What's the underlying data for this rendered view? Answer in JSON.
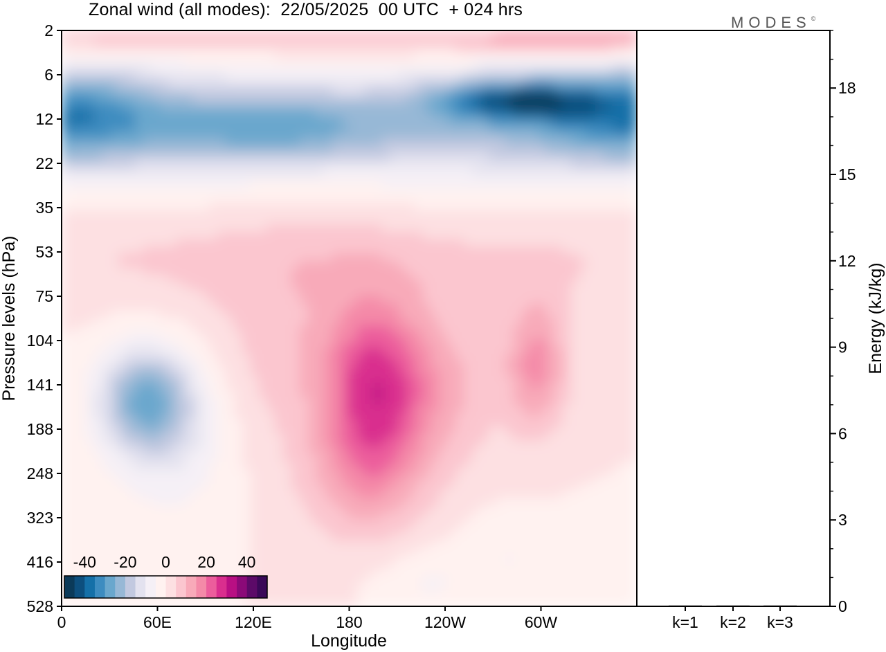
{
  "title": "Zonal wind (all modes):  22/05/2025  00 UTC  + 024 hrs",
  "brand": "MODES",
  "brand_mark": "©",
  "chart_data": [
    {
      "type": "heatmap",
      "title": "Zonal wind (all modes):  22/05/2025  00 UTC  + 024 hrs",
      "xlabel": "Longitude",
      "ylabel": "Pressure levels (hPa)",
      "x_ticks": [
        "0",
        "60E",
        "120E",
        "180",
        "120W",
        "60W"
      ],
      "x_range_deg": [
        0,
        360
      ],
      "y_ticks": [
        "2",
        "6",
        "12",
        "22",
        "35",
        "53",
        "75",
        "104",
        "141",
        "188",
        "248",
        "323",
        "416",
        "528"
      ],
      "y_scale": "model levels (non-linear pressure)",
      "colorbar": {
        "tick_labels": [
          "-40",
          "-20",
          "0",
          "20",
          "40"
        ],
        "range": [
          -50,
          50
        ],
        "step": 5,
        "colors": [
          "#0b3a59",
          "#0d4f7e",
          "#1570a8",
          "#3d8cc0",
          "#6aa7cd",
          "#97b8d6",
          "#c2c9e0",
          "#e3e2ef",
          "#f5f0f6",
          "#fff2f0",
          "#fde0e2",
          "#fbc6cf",
          "#f8aab9",
          "#f48aa8",
          "#ec5d9c",
          "#d92e8e",
          "#b80f83",
          "#8b0a78",
          "#5c0a68",
          "#3a0858"
        ]
      },
      "fields": {
        "upper_easterly_band": "strong negative winds (-20 to -50) between 6 and 22 hPa, strongest near 60W-30W",
        "top_level": "weak positive (0 to 15) near 2-4 hPa",
        "stratosphere_below": "weak positive 0 to 10 at 35-75 hPa"
      }
    },
    {
      "type": "bar",
      "categories": [
        "k=1",
        "k=2",
        "k=3"
      ],
      "values": [
        0.02,
        0.01,
        0.01
      ],
      "ylabel": "Energy (kJ/kg)",
      "ylim": [
        0,
        20
      ],
      "y_ticks": [
        0,
        3,
        6,
        9,
        12,
        15,
        18
      ]
    }
  ]
}
